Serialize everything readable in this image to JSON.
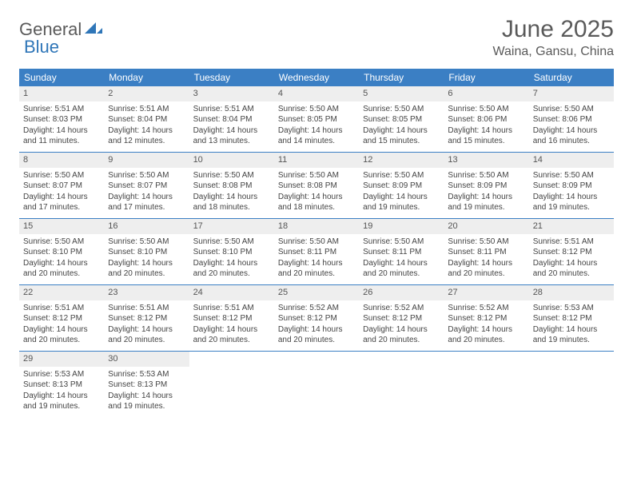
{
  "logo": {
    "part1": "General",
    "part2": "Blue"
  },
  "title": "June 2025",
  "location": "Waina, Gansu, China",
  "colors": {
    "header_bg": "#3b7fc4",
    "header_text": "#ffffff",
    "daynum_bg": "#eeeeee",
    "border": "#3b7fc4",
    "logo_gray": "#5a5a5a",
    "logo_blue": "#2f76b8"
  },
  "dayHeaders": [
    "Sunday",
    "Monday",
    "Tuesday",
    "Wednesday",
    "Thursday",
    "Friday",
    "Saturday"
  ],
  "weeks": [
    [
      {
        "n": "1",
        "sr": "Sunrise: 5:51 AM",
        "ss": "Sunset: 8:03 PM",
        "d1": "Daylight: 14 hours",
        "d2": "and 11 minutes."
      },
      {
        "n": "2",
        "sr": "Sunrise: 5:51 AM",
        "ss": "Sunset: 8:04 PM",
        "d1": "Daylight: 14 hours",
        "d2": "and 12 minutes."
      },
      {
        "n": "3",
        "sr": "Sunrise: 5:51 AM",
        "ss": "Sunset: 8:04 PM",
        "d1": "Daylight: 14 hours",
        "d2": "and 13 minutes."
      },
      {
        "n": "4",
        "sr": "Sunrise: 5:50 AM",
        "ss": "Sunset: 8:05 PM",
        "d1": "Daylight: 14 hours",
        "d2": "and 14 minutes."
      },
      {
        "n": "5",
        "sr": "Sunrise: 5:50 AM",
        "ss": "Sunset: 8:05 PM",
        "d1": "Daylight: 14 hours",
        "d2": "and 15 minutes."
      },
      {
        "n": "6",
        "sr": "Sunrise: 5:50 AM",
        "ss": "Sunset: 8:06 PM",
        "d1": "Daylight: 14 hours",
        "d2": "and 15 minutes."
      },
      {
        "n": "7",
        "sr": "Sunrise: 5:50 AM",
        "ss": "Sunset: 8:06 PM",
        "d1": "Daylight: 14 hours",
        "d2": "and 16 minutes."
      }
    ],
    [
      {
        "n": "8",
        "sr": "Sunrise: 5:50 AM",
        "ss": "Sunset: 8:07 PM",
        "d1": "Daylight: 14 hours",
        "d2": "and 17 minutes."
      },
      {
        "n": "9",
        "sr": "Sunrise: 5:50 AM",
        "ss": "Sunset: 8:07 PM",
        "d1": "Daylight: 14 hours",
        "d2": "and 17 minutes."
      },
      {
        "n": "10",
        "sr": "Sunrise: 5:50 AM",
        "ss": "Sunset: 8:08 PM",
        "d1": "Daylight: 14 hours",
        "d2": "and 18 minutes."
      },
      {
        "n": "11",
        "sr": "Sunrise: 5:50 AM",
        "ss": "Sunset: 8:08 PM",
        "d1": "Daylight: 14 hours",
        "d2": "and 18 minutes."
      },
      {
        "n": "12",
        "sr": "Sunrise: 5:50 AM",
        "ss": "Sunset: 8:09 PM",
        "d1": "Daylight: 14 hours",
        "d2": "and 19 minutes."
      },
      {
        "n": "13",
        "sr": "Sunrise: 5:50 AM",
        "ss": "Sunset: 8:09 PM",
        "d1": "Daylight: 14 hours",
        "d2": "and 19 minutes."
      },
      {
        "n": "14",
        "sr": "Sunrise: 5:50 AM",
        "ss": "Sunset: 8:09 PM",
        "d1": "Daylight: 14 hours",
        "d2": "and 19 minutes."
      }
    ],
    [
      {
        "n": "15",
        "sr": "Sunrise: 5:50 AM",
        "ss": "Sunset: 8:10 PM",
        "d1": "Daylight: 14 hours",
        "d2": "and 20 minutes."
      },
      {
        "n": "16",
        "sr": "Sunrise: 5:50 AM",
        "ss": "Sunset: 8:10 PM",
        "d1": "Daylight: 14 hours",
        "d2": "and 20 minutes."
      },
      {
        "n": "17",
        "sr": "Sunrise: 5:50 AM",
        "ss": "Sunset: 8:10 PM",
        "d1": "Daylight: 14 hours",
        "d2": "and 20 minutes."
      },
      {
        "n": "18",
        "sr": "Sunrise: 5:50 AM",
        "ss": "Sunset: 8:11 PM",
        "d1": "Daylight: 14 hours",
        "d2": "and 20 minutes."
      },
      {
        "n": "19",
        "sr": "Sunrise: 5:50 AM",
        "ss": "Sunset: 8:11 PM",
        "d1": "Daylight: 14 hours",
        "d2": "and 20 minutes."
      },
      {
        "n": "20",
        "sr": "Sunrise: 5:50 AM",
        "ss": "Sunset: 8:11 PM",
        "d1": "Daylight: 14 hours",
        "d2": "and 20 minutes."
      },
      {
        "n": "21",
        "sr": "Sunrise: 5:51 AM",
        "ss": "Sunset: 8:12 PM",
        "d1": "Daylight: 14 hours",
        "d2": "and 20 minutes."
      }
    ],
    [
      {
        "n": "22",
        "sr": "Sunrise: 5:51 AM",
        "ss": "Sunset: 8:12 PM",
        "d1": "Daylight: 14 hours",
        "d2": "and 20 minutes."
      },
      {
        "n": "23",
        "sr": "Sunrise: 5:51 AM",
        "ss": "Sunset: 8:12 PM",
        "d1": "Daylight: 14 hours",
        "d2": "and 20 minutes."
      },
      {
        "n": "24",
        "sr": "Sunrise: 5:51 AM",
        "ss": "Sunset: 8:12 PM",
        "d1": "Daylight: 14 hours",
        "d2": "and 20 minutes."
      },
      {
        "n": "25",
        "sr": "Sunrise: 5:52 AM",
        "ss": "Sunset: 8:12 PM",
        "d1": "Daylight: 14 hours",
        "d2": "and 20 minutes."
      },
      {
        "n": "26",
        "sr": "Sunrise: 5:52 AM",
        "ss": "Sunset: 8:12 PM",
        "d1": "Daylight: 14 hours",
        "d2": "and 20 minutes."
      },
      {
        "n": "27",
        "sr": "Sunrise: 5:52 AM",
        "ss": "Sunset: 8:12 PM",
        "d1": "Daylight: 14 hours",
        "d2": "and 20 minutes."
      },
      {
        "n": "28",
        "sr": "Sunrise: 5:53 AM",
        "ss": "Sunset: 8:12 PM",
        "d1": "Daylight: 14 hours",
        "d2": "and 19 minutes."
      }
    ],
    [
      {
        "n": "29",
        "sr": "Sunrise: 5:53 AM",
        "ss": "Sunset: 8:13 PM",
        "d1": "Daylight: 14 hours",
        "d2": "and 19 minutes."
      },
      {
        "n": "30",
        "sr": "Sunrise: 5:53 AM",
        "ss": "Sunset: 8:13 PM",
        "d1": "Daylight: 14 hours",
        "d2": "and 19 minutes."
      },
      {
        "empty": true
      },
      {
        "empty": true
      },
      {
        "empty": true
      },
      {
        "empty": true
      },
      {
        "empty": true
      }
    ]
  ]
}
